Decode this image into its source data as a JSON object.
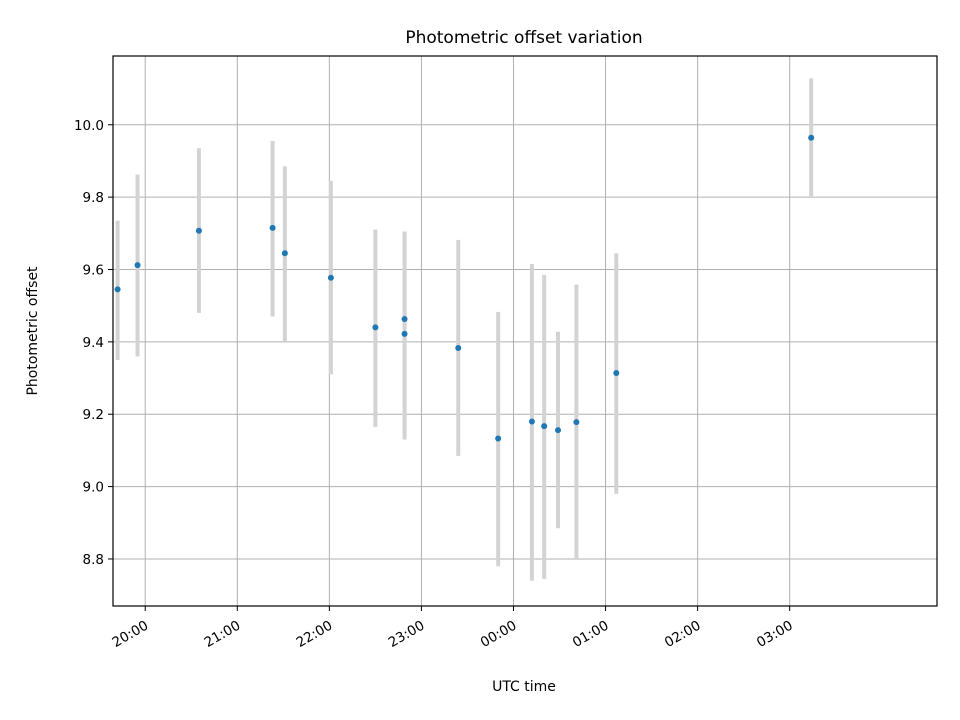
{
  "chart_data": {
    "type": "scatter",
    "title": "Photometric offset variation",
    "xlabel": "UTC time",
    "ylabel": "Photometric offset",
    "x_axis_type": "time",
    "x_range": [
      "19:39",
      "04:36"
    ],
    "ylim": [
      8.67,
      10.19
    ],
    "grid": true,
    "x_ticks": [
      "20:00",
      "21:00",
      "22:00",
      "23:00",
      "00:00",
      "01:00",
      "02:00",
      "03:00"
    ],
    "y_ticks": [
      "8.8",
      "9.0",
      "9.2",
      "9.4",
      "9.6",
      "9.8",
      "10.0"
    ],
    "marker_color": "#1f77b4",
    "errorbar_color": "#d3d3d3",
    "points": [
      {
        "time": "19:42",
        "y": 9.545,
        "ymin": 9.35,
        "ymax": 9.735
      },
      {
        "time": "19:55",
        "y": 9.612,
        "ymin": 9.36,
        "ymax": 9.862
      },
      {
        "time": "20:35",
        "y": 9.707,
        "ymin": 9.48,
        "ymax": 9.935
      },
      {
        "time": "21:23",
        "y": 9.715,
        "ymin": 9.47,
        "ymax": 9.955
      },
      {
        "time": "21:31",
        "y": 9.645,
        "ymin": 9.4,
        "ymax": 9.885
      },
      {
        "time": "22:01",
        "y": 9.577,
        "ymin": 9.31,
        "ymax": 9.845
      },
      {
        "time": "22:30",
        "y": 9.44,
        "ymin": 9.165,
        "ymax": 9.71
      },
      {
        "time": "22:49",
        "y": 9.463,
        "ymin": 9.13,
        "ymax": 9.705
      },
      {
        "time": "22:49",
        "y": 9.422,
        "ymin": 9.13,
        "ymax": 9.705
      },
      {
        "time": "23:24",
        "y": 9.383,
        "ymin": 9.085,
        "ymax": 9.682
      },
      {
        "time": "23:50",
        "y": 9.133,
        "ymin": 8.78,
        "ymax": 9.483
      },
      {
        "time": "00:12",
        "y": 9.18,
        "ymin": 8.74,
        "ymax": 9.615
      },
      {
        "time": "00:20",
        "y": 9.167,
        "ymin": 8.745,
        "ymax": 9.585
      },
      {
        "time": "00:29",
        "y": 9.156,
        "ymin": 8.885,
        "ymax": 9.428
      },
      {
        "time": "00:41",
        "y": 9.178,
        "ymin": 8.8,
        "ymax": 9.558
      },
      {
        "time": "01:07",
        "y": 9.314,
        "ymin": 8.98,
        "ymax": 9.645
      },
      {
        "time": "03:14",
        "y": 9.964,
        "ymin": 9.8,
        "ymax": 10.128
      }
    ]
  }
}
